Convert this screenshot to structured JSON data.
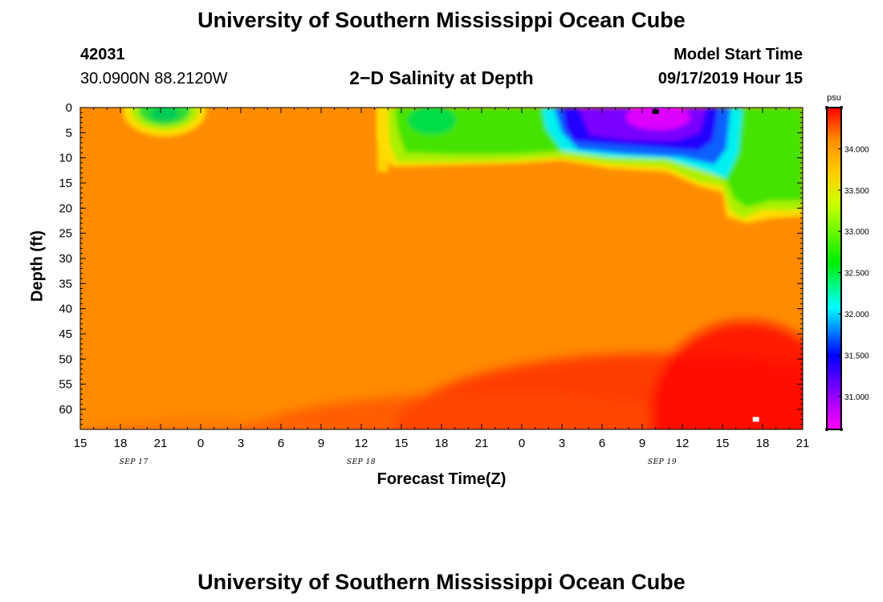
{
  "page": {
    "title_top": "University of Southern Mississippi Ocean Cube",
    "title_bottom": "University of Southern Mississippi Ocean Cube",
    "station_id": "42031",
    "station_coords": "30.0900N 88.2120W",
    "model_label": "Model Start Time",
    "model_time": "09/17/2019 Hour 15"
  },
  "chart_data": {
    "type": "heatmap",
    "title": "2−D Salinity at Depth",
    "xlabel": "Forecast Time(Z)",
    "ylabel": "Depth (ft)",
    "x_ticks": [
      "15",
      "18",
      "21",
      "0",
      "3",
      "6",
      "9",
      "12",
      "15",
      "18",
      "21",
      "0",
      "3",
      "6",
      "9",
      "12",
      "15",
      "18",
      "21"
    ],
    "x_range_hours": [
      0,
      54
    ],
    "date_labels": [
      {
        "label": "SEP 17",
        "hour": 4
      },
      {
        "label": "SEP 18",
        "hour": 21
      },
      {
        "label": "SEP 19",
        "hour": 43.5
      }
    ],
    "y_ticks": [
      0,
      5,
      10,
      15,
      20,
      25,
      30,
      35,
      40,
      45,
      50,
      55,
      60
    ],
    "ylim": [
      0,
      64
    ],
    "y_inverted": true,
    "colorbar": {
      "unit": "psu",
      "ticks": [
        "31.000",
        "31.500",
        "32.000",
        "32.500",
        "33.000",
        "33.500",
        "34.000"
      ],
      "range": [
        30.6,
        34.5
      ]
    },
    "markers": [
      {
        "hour": 43,
        "depth": 0.8,
        "color": "#000000"
      },
      {
        "hour": 50.5,
        "depth": 62,
        "color": "#ffffff"
      }
    ]
  }
}
